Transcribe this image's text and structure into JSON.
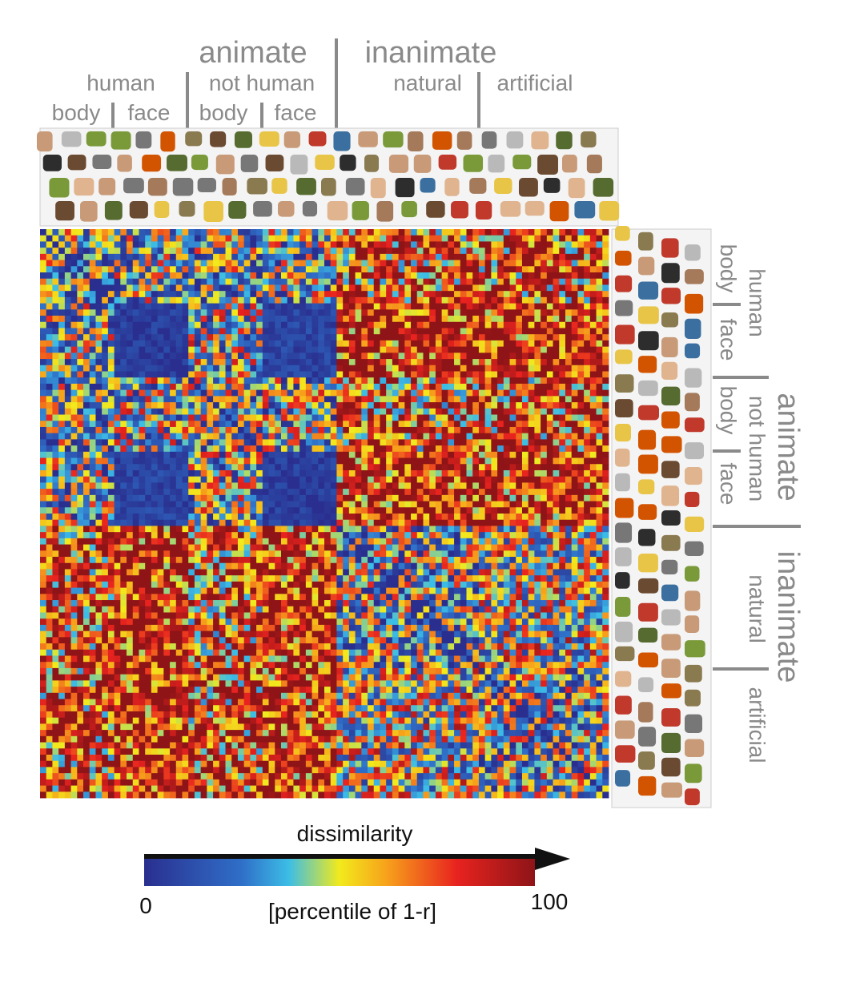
{
  "chart_data": {
    "type": "heatmap",
    "title": "",
    "n_items": 92,
    "categories": [
      {
        "name": "human body",
        "count": 12
      },
      {
        "name": "human face",
        "count": 12
      },
      {
        "name": "not human body",
        "count": 12
      },
      {
        "name": "not human face",
        "count": 12
      },
      {
        "name": "natural",
        "count": 23
      },
      {
        "name": "artificial",
        "count": 21
      }
    ],
    "block_means_percentile": [
      [
        35,
        40,
        35,
        38,
        75,
        75
      ],
      [
        40,
        5,
        45,
        8,
        88,
        88
      ],
      [
        35,
        45,
        40,
        40,
        72,
        75
      ],
      [
        38,
        8,
        40,
        5,
        85,
        85
      ],
      [
        75,
        88,
        72,
        85,
        35,
        50
      ],
      [
        75,
        88,
        75,
        85,
        50,
        40
      ]
    ],
    "labels": {
      "animate": "animate",
      "inanimate": "inanimate",
      "human": "human",
      "not_human": "not human",
      "natural": "natural",
      "artificial": "artificial",
      "body": "body",
      "face": "face"
    },
    "colorbar": {
      "title": "dissimilarity",
      "label": "[percentile of 1-r]",
      "min_label": "0",
      "max_label": "100",
      "range": [
        0,
        100
      ],
      "colormap": "jet"
    }
  }
}
